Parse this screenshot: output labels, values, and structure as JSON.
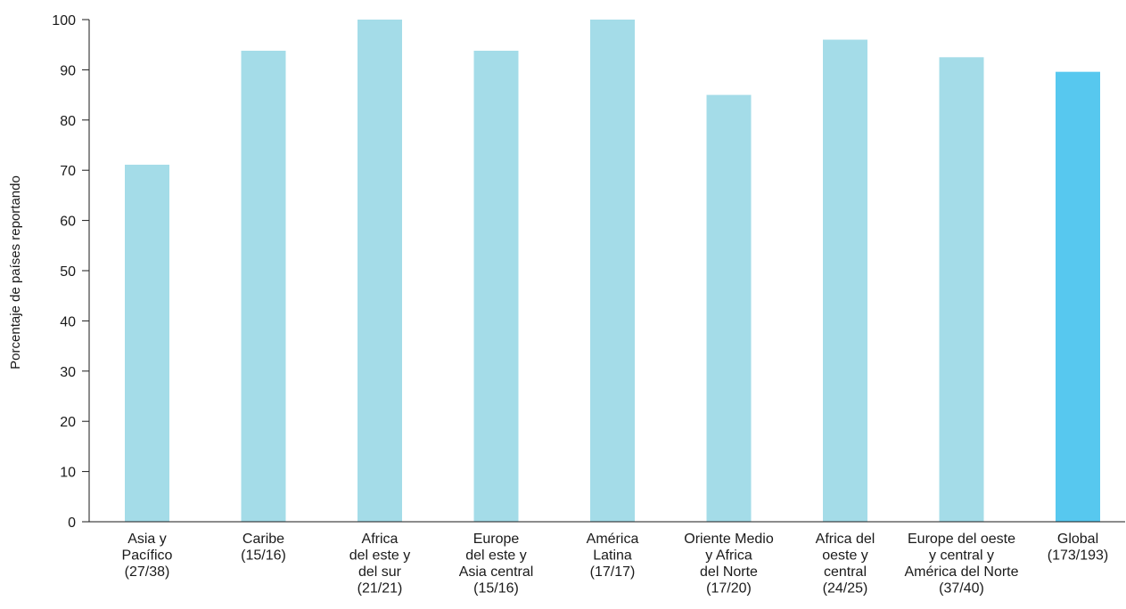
{
  "chart_data": {
    "type": "bar",
    "title": "",
    "xlabel": "",
    "ylabel": "Porcentaje de países reportando",
    "ylim": [
      0,
      100
    ],
    "yticks": [
      0,
      10,
      20,
      30,
      40,
      50,
      60,
      70,
      80,
      90,
      100
    ],
    "grid": false,
    "legend": "none",
    "categories": [
      [
        "Asia y",
        "Pacífico",
        "(27/38)"
      ],
      [
        "Caribe",
        "(15/16)"
      ],
      [
        "Africa",
        "del este y",
        "del sur",
        "(21/21)"
      ],
      [
        "Europe",
        "del este y",
        "Asia central",
        "(15/16)"
      ],
      [
        "América",
        "Latina",
        "(17/17)"
      ],
      [
        "Oriente Medio",
        "y Africa",
        "del Norte",
        "(17/20)"
      ],
      [
        "Africa del",
        "oeste y",
        "central",
        "(24/25)"
      ],
      [
        "Europe del oeste",
        "y central y",
        "América del Norte",
        "(37/40)"
      ],
      [
        "Global",
        "(173/193)"
      ]
    ],
    "values": [
      71.1,
      93.8,
      100,
      93.8,
      100,
      85,
      96,
      92.5,
      89.6
    ],
    "colors": {
      "bar": "#a4dce8",
      "highlight": "#57c8ef",
      "axis": "#1a1a1a",
      "text": "#1a1a1a"
    },
    "highlight_index": 8
  }
}
